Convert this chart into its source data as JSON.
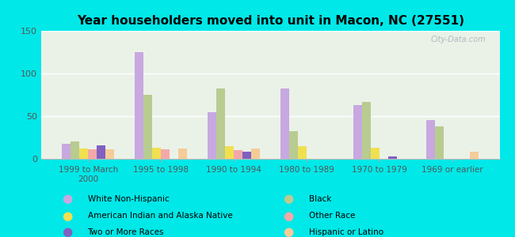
{
  "title": "Year householders moved into unit in Macon, NC (27551)",
  "categories": [
    "1999 to March\n2000",
    "1995 to 1998",
    "1990 to 1994",
    "1980 to 1989",
    "1970 to 1979",
    "1969 or earlier"
  ],
  "series_order": [
    "White Non-Hispanic",
    "Black",
    "American Indian and Alaska Native",
    "Other Race",
    "Two or More Races",
    "Hispanic or Latino"
  ],
  "series": {
    "White Non-Hispanic": [
      18,
      125,
      55,
      82,
      63,
      45
    ],
    "Black": [
      20,
      75,
      82,
      32,
      67,
      38
    ],
    "American Indian and Alaska Native": [
      12,
      13,
      15,
      15,
      13,
      0
    ],
    "Other Race": [
      11,
      11,
      10,
      0,
      0,
      0
    ],
    "Two or More Races": [
      16,
      0,
      8,
      0,
      3,
      0
    ],
    "Hispanic or Latino": [
      11,
      12,
      12,
      0,
      0,
      8
    ]
  },
  "colors": {
    "White Non-Hispanic": "#c8a8e0",
    "Black": "#b8cc90",
    "American Indian and Alaska Native": "#f0e050",
    "Other Race": "#f4a8a8",
    "Two or More Races": "#8060c0",
    "Hispanic or Latino": "#f5cc98"
  },
  "ylim": [
    0,
    150
  ],
  "yticks": [
    0,
    50,
    100,
    150
  ],
  "background_color": "#00e8e8",
  "plot_bg_gradient_top": "#e8f0e0",
  "plot_bg_gradient_bottom": "#f0f8f0",
  "watermark": "City-Data.com"
}
